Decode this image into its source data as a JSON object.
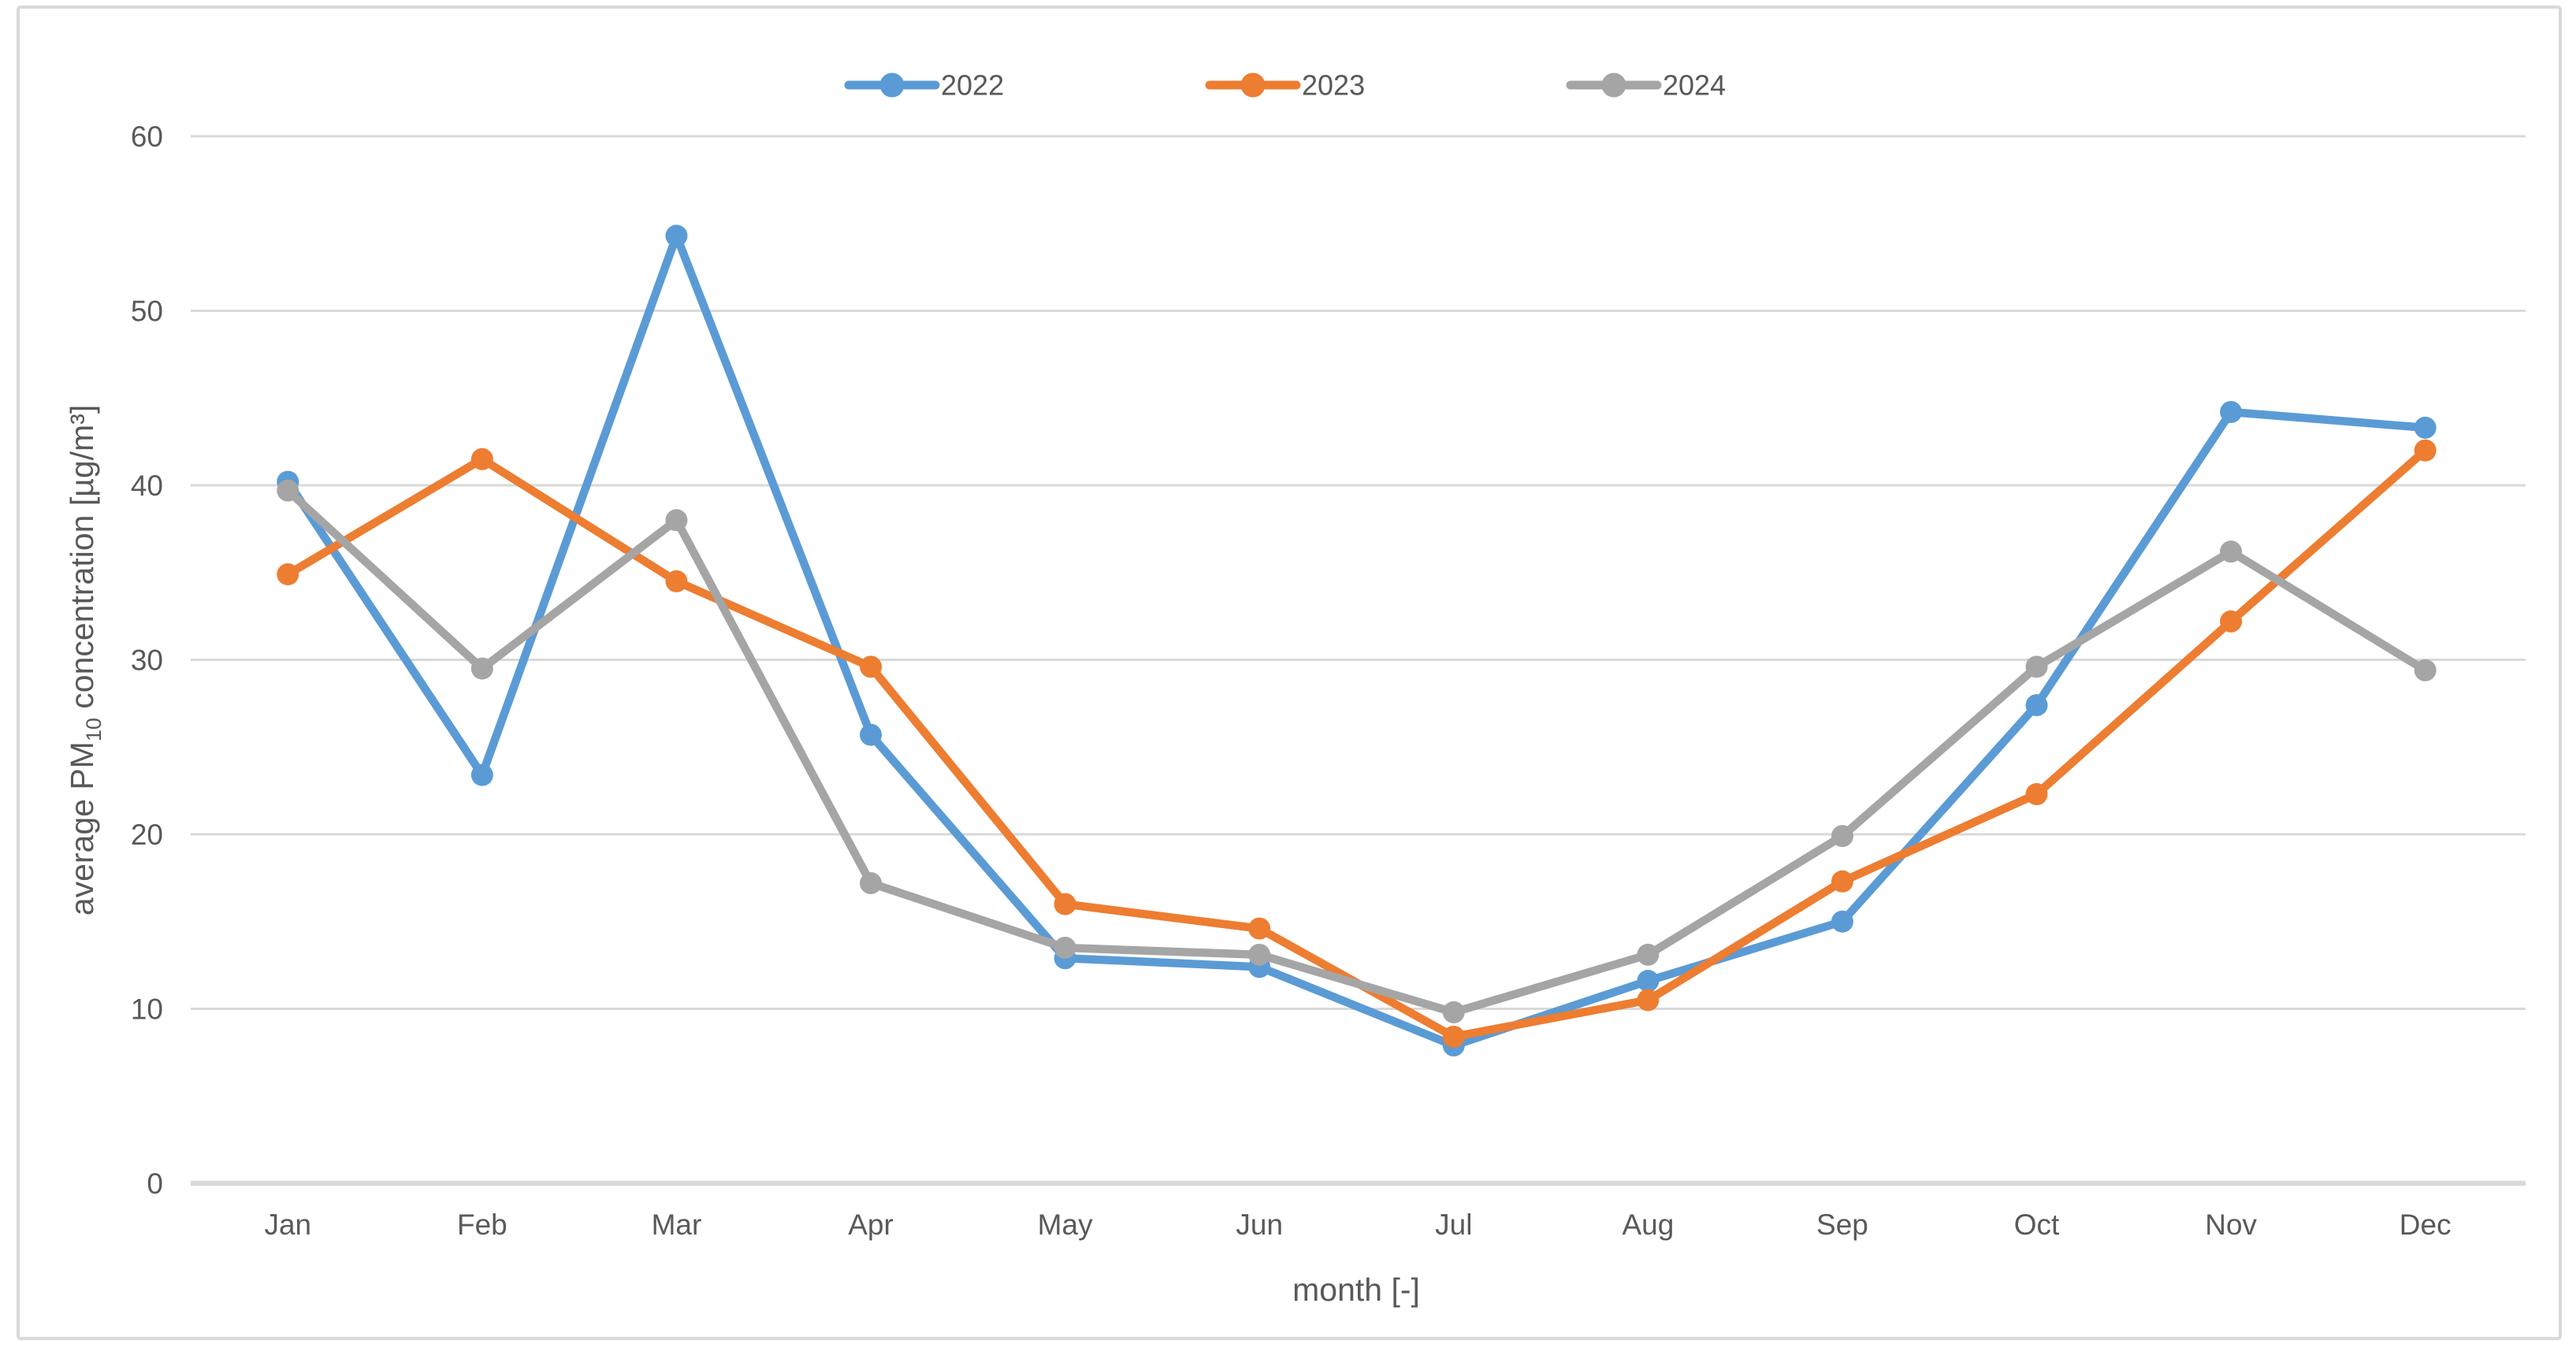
{
  "chart_data": {
    "type": "line",
    "title": "",
    "categories": [
      "Jan",
      "Feb",
      "Mar",
      "Apr",
      "May",
      "Jun",
      "Jul",
      "Aug",
      "Sep",
      "Oct",
      "Nov",
      "Dec"
    ],
    "series": [
      {
        "name": "2022",
        "color": "#5B9BD5",
        "values": [
          40.2,
          23.4,
          54.3,
          25.7,
          12.9,
          12.4,
          7.9,
          11.6,
          15.0,
          27.4,
          44.2,
          43.3
        ]
      },
      {
        "name": "2023",
        "color": "#ED7D31",
        "values": [
          34.9,
          41.5,
          34.5,
          29.6,
          16.0,
          14.6,
          8.4,
          10.5,
          17.3,
          22.3,
          32.2,
          42.0
        ]
      },
      {
        "name": "2024",
        "color": "#A5A5A5",
        "values": [
          39.7,
          29.5,
          38.0,
          17.2,
          13.5,
          13.1,
          9.8,
          13.1,
          19.9,
          29.6,
          36.2,
          29.4
        ]
      }
    ],
    "xlabel": "month [-]",
    "ylabel": "average PM10 concentration [µg/m³]",
    "ylabel_parts": {
      "prefix": "average PM",
      "sub": "10",
      "suffix": " concentration [µg/m³]"
    },
    "ylim": [
      0,
      60
    ],
    "yticks": [
      0,
      10,
      20,
      30,
      40,
      50,
      60
    ],
    "ytick_labels": [
      "0",
      "10",
      "20",
      "30",
      "40",
      "50",
      "60"
    ],
    "grid": "horizontal",
    "legend_position": "top-center",
    "marker": "circle",
    "style": {
      "grid_color": "#D9D9D9",
      "axis_line_color": "#D9D9D9",
      "axis_text_color": "#595959",
      "frame_border_color": "#D9D9D9",
      "background_color": "#FFFFFF"
    }
  }
}
